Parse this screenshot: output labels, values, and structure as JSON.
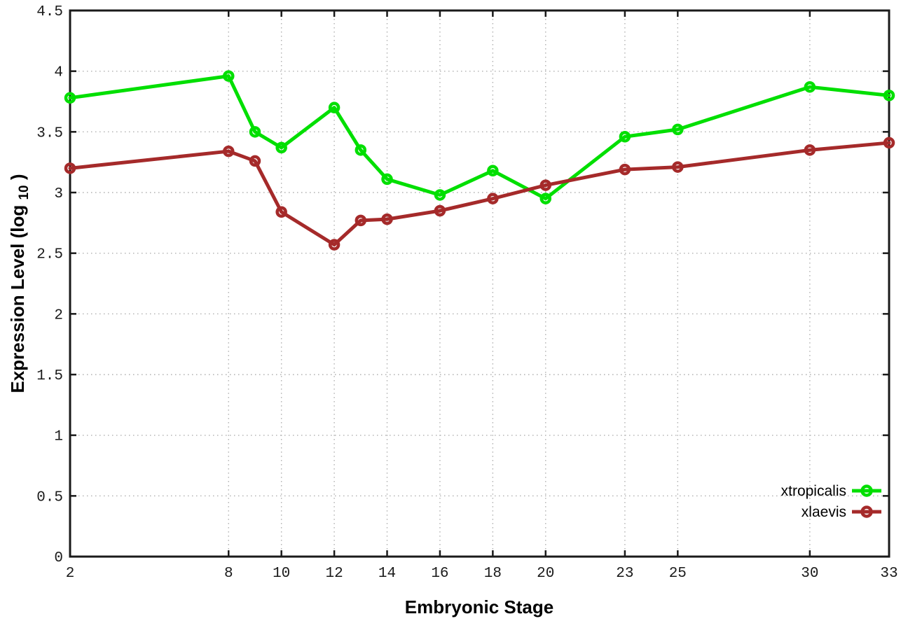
{
  "chart_data": {
    "type": "line",
    "title": "",
    "xlabel": "Embryonic Stage",
    "ylabel": "Expression Level (log10)",
    "ylabel_parts": {
      "main": "Expression Level (log",
      "sub": "10",
      "close": ")"
    },
    "xlim": [
      2,
      33
    ],
    "ylim": [
      0,
      4.5
    ],
    "grid": true,
    "legend_position": "inside-bottom-right",
    "x": [
      2,
      8,
      9,
      10,
      12,
      13,
      14,
      16,
      18,
      20,
      23,
      25,
      30,
      33
    ],
    "xtick_values": [
      2,
      8,
      10,
      12,
      14,
      16,
      18,
      20,
      23,
      25,
      30,
      33
    ],
    "xtick_labels": [
      "2",
      "8",
      "10",
      "12",
      "14",
      "16",
      "18",
      "20",
      "23",
      "25",
      "30",
      "33"
    ],
    "ytick_values": [
      0,
      0.5,
      1,
      1.5,
      2,
      2.5,
      3,
      3.5,
      4,
      4.5
    ],
    "ytick_labels": [
      "0",
      "0.5",
      "1",
      "1.5",
      "2",
      "2.5",
      "3",
      "3.5",
      "4",
      "4.5"
    ],
    "series": [
      {
        "name": "xtropicalis",
        "color": "#00df00",
        "values": [
          3.78,
          3.96,
          3.5,
          3.37,
          3.7,
          3.35,
          3.11,
          2.98,
          3.18,
          2.95,
          3.46,
          3.52,
          3.87,
          3.8
        ]
      },
      {
        "name": "xlaevis",
        "color": "#a52a2a",
        "values": [
          3.2,
          3.34,
          3.26,
          2.84,
          2.57,
          2.77,
          2.78,
          2.85,
          2.95,
          3.06,
          3.19,
          3.21,
          3.35,
          3.41
        ]
      }
    ],
    "axis_color": "#1a1a1a",
    "grid_color": "#b0b0b0",
    "background": "#ffffff"
  }
}
